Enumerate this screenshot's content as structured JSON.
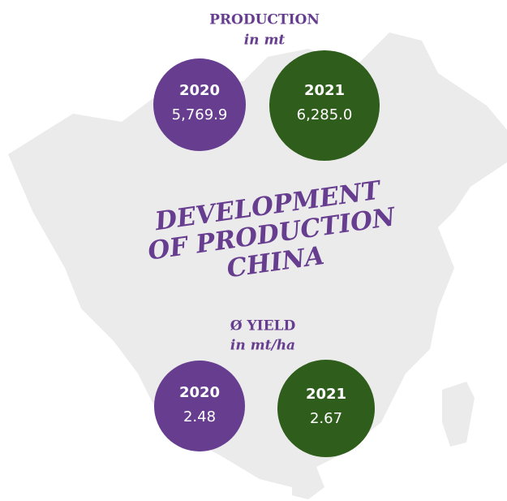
{
  "production": {
    "title": "PRODUCTION",
    "unit": "in mt",
    "items": [
      {
        "year": "2020",
        "value": "5,769.9"
      },
      {
        "year": "2021",
        "value": "6,285.0"
      }
    ]
  },
  "headline": [
    "DEVELOPMENT",
    "OF PRODUCTION",
    "CHINA"
  ],
  "yield": {
    "title": "Ø YIELD",
    "unit": "in mt/ha",
    "items": [
      {
        "year": "2020",
        "value": "2.48"
      },
      {
        "year": "2021",
        "value": "2.67"
      }
    ]
  }
}
